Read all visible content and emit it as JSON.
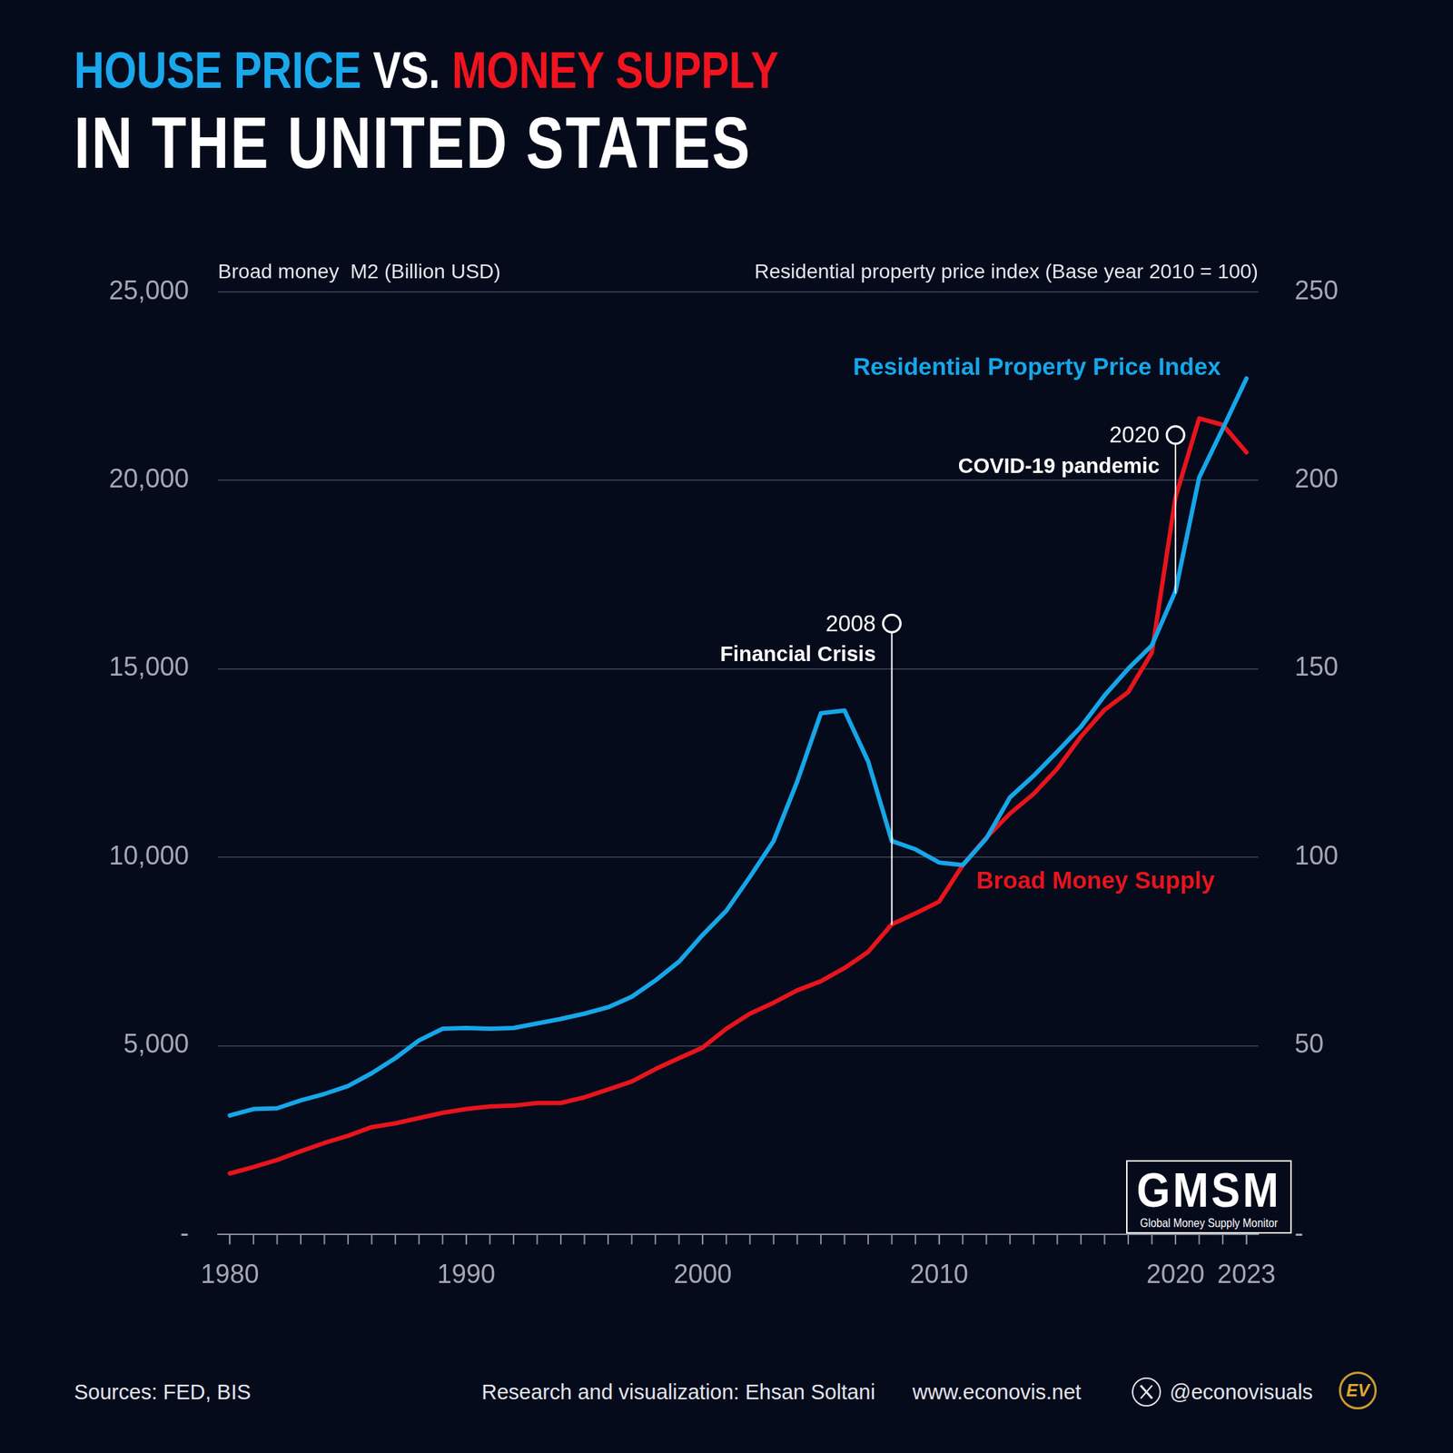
{
  "chart_data": {
    "type": "line",
    "title": [
      {
        "text": "HOUSE PRICE",
        "color": "#19a8ec"
      },
      {
        "text": "VS.",
        "color": "#ffffff"
      },
      {
        "text": "MONEY SUPPLY",
        "color": "#f0141e"
      }
    ],
    "subtitle": "IN THE UNITED STATES",
    "y_label": "Broad money  M2 (Billion USD)",
    "y2_label": "Residential property price index (Base year 2010 = 100)",
    "x": [
      1980,
      1981,
      1982,
      1983,
      1984,
      1985,
      1986,
      1987,
      1988,
      1989,
      1990,
      1991,
      1992,
      1993,
      1994,
      1995,
      1996,
      1997,
      1998,
      1999,
      2000,
      2001,
      2002,
      2003,
      2004,
      2005,
      2006,
      2007,
      2008,
      2009,
      2010,
      2011,
      2012,
      2013,
      2014,
      2015,
      2016,
      2017,
      2018,
      2019,
      2020,
      2021,
      2022,
      2023
    ],
    "xlim": [
      1979.5,
      2023.5
    ],
    "xticks": [
      1980,
      1990,
      2000,
      2010,
      2020,
      2023
    ],
    "ylim": [
      0,
      25000
    ],
    "yticks": [
      {
        "value": 0,
        "label": "-"
      },
      {
        "value": 5000,
        "label": "5,000"
      },
      {
        "value": 10000,
        "label": "10,000"
      },
      {
        "value": 15000,
        "label": "15,000"
      },
      {
        "value": 20000,
        "label": "20,000"
      },
      {
        "value": 25000,
        "label": "25,000"
      }
    ],
    "y2lim": [
      0,
      250
    ],
    "y2ticks": [
      {
        "value": 0,
        "label": "-"
      },
      50,
      100,
      150,
      200,
      250
    ],
    "grid": true,
    "series": [
      {
        "name": "Residential Property Price Index",
        "color": "#16a6e8",
        "axis": "y2",
        "values": [
          31.5,
          33.2,
          33.4,
          35.5,
          37.2,
          39.3,
          42.7,
          46.7,
          51.4,
          54.5,
          54.7,
          54.5,
          54.7,
          55.9,
          57.1,
          58.5,
          60.2,
          63.0,
          67.3,
          72.3,
          79.4,
          85.8,
          94.8,
          104.3,
          120.1,
          138.2,
          138.9,
          125.4,
          104.3,
          102.1,
          98.6,
          97.9,
          105.0,
          115.9,
          121.6,
          128.0,
          134.6,
          142.9,
          150.0,
          156.2,
          170.6,
          200.7,
          213.7,
          227.0
        ]
      },
      {
        "name": "Broad Money Supply",
        "color": "#e8141c",
        "values": [
          1610,
          1780,
          1970,
          2200,
          2420,
          2610,
          2840,
          2940,
          3080,
          3220,
          3320,
          3390,
          3410,
          3480,
          3480,
          3630,
          3840,
          4050,
          4380,
          4670,
          4950,
          5450,
          5850,
          6140,
          6470,
          6710,
          7060,
          7490,
          8220,
          8510,
          8820,
          9790,
          10520,
          11160,
          11680,
          12350,
          13200,
          13910,
          14380,
          15430,
          19550,
          21640,
          21470,
          20740
        ]
      }
    ],
    "annotations": [
      {
        "x": 2008,
        "y": [
          8200,
          16200
        ],
        "label": "2008",
        "text": "Financial Crisis"
      },
      {
        "x": 2020,
        "y": [
          17000,
          21200
        ],
        "label": "2020",
        "text": "COVID-19 pandemic"
      }
    ],
    "logo": {
      "text": "GMSM",
      "subtitle": "Global Money Supply Monitor"
    },
    "footer": {
      "source": "Sources: FED, BIS",
      "credit": "Research and visualization: Ehsan Soltani",
      "website": "www.econovis.net",
      "handle": "@econovisuals",
      "badge": "EV"
    }
  }
}
